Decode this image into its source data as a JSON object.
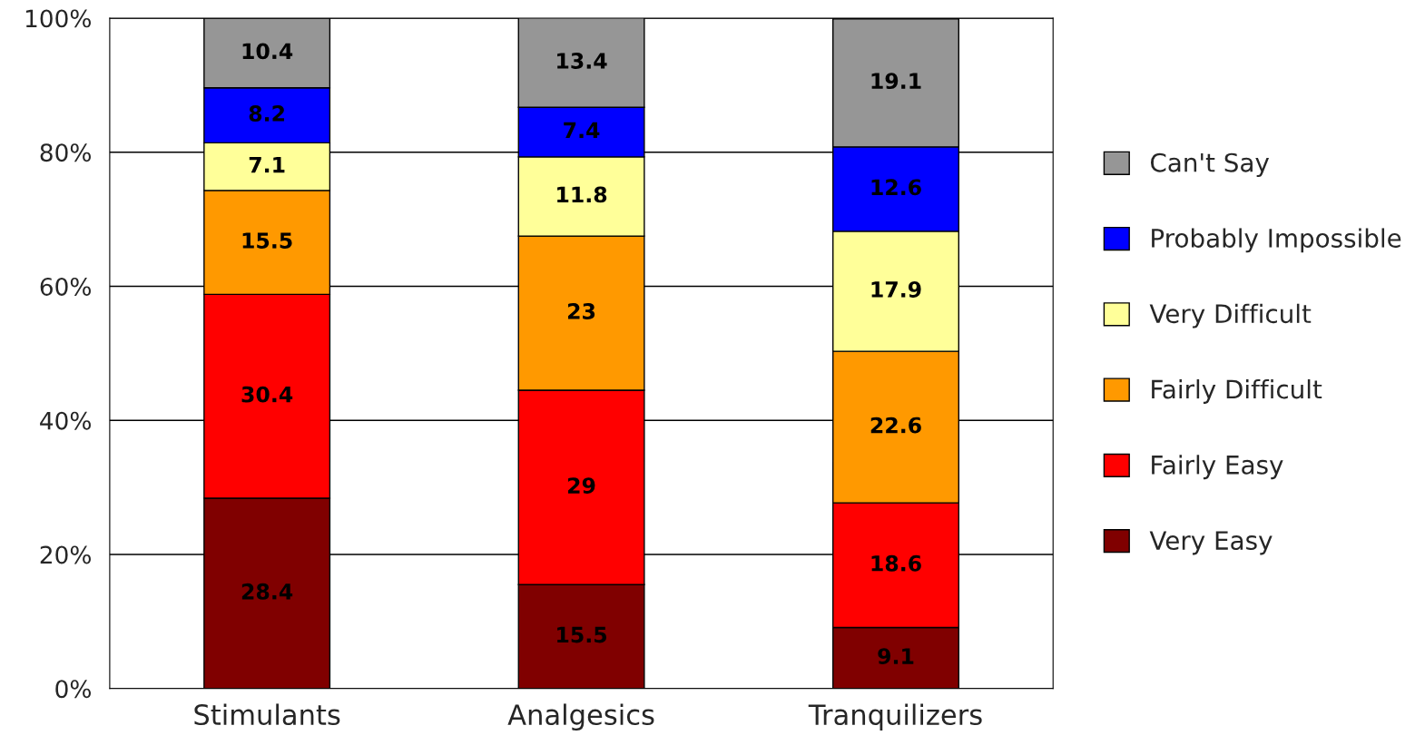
{
  "chart_data": {
    "type": "bar",
    "stacked": true,
    "categories": [
      "Stimulants",
      "Analgesics",
      "Tranquilizers"
    ],
    "series": [
      {
        "name": "Very Easy",
        "color": "#800000",
        "values": [
          28.4,
          15.5,
          9.1
        ]
      },
      {
        "name": "Fairly Easy",
        "color": "#ff0000",
        "values": [
          30.4,
          29,
          18.6
        ]
      },
      {
        "name": "Fairly Difficult",
        "color": "#ff9900",
        "values": [
          15.5,
          23,
          22.6
        ]
      },
      {
        "name": "Very Difficult",
        "color": "#ffff99",
        "values": [
          7.1,
          11.8,
          17.9
        ]
      },
      {
        "name": "Probably Impossible",
        "color": "#0000ff",
        "values": [
          8.2,
          7.4,
          12.6
        ]
      },
      {
        "name": "Can't Say",
        "color": "#969696",
        "values": [
          10.4,
          13.4,
          19.1
        ]
      }
    ],
    "ylim": [
      0,
      100
    ],
    "yticks": [
      {
        "value": 0,
        "label": "0%"
      },
      {
        "value": 20,
        "label": "20%"
      },
      {
        "value": 40,
        "label": "40%"
      },
      {
        "value": 60,
        "label": "60%"
      },
      {
        "value": 80,
        "label": "80%"
      },
      {
        "value": 100,
        "label": "100%"
      }
    ],
    "grid": "y",
    "legend": "right",
    "data_labels": true
  }
}
